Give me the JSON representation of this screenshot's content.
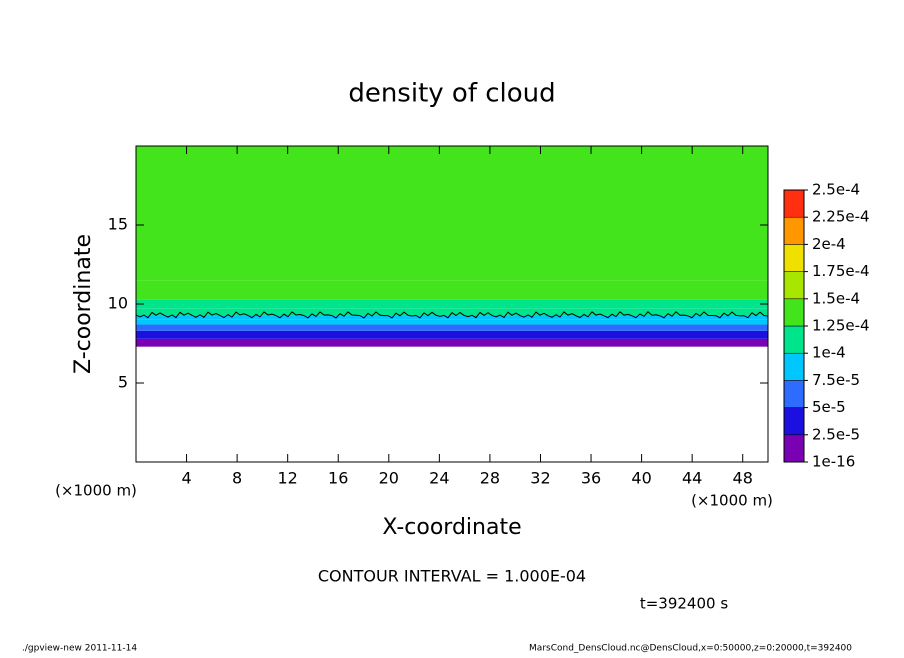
{
  "chart_data": {
    "type": "contour",
    "title": "density of cloud",
    "xlabel": "X-coordinate",
    "ylabel": "Z-coordinate",
    "x_units": [
      "(×1000 m)",
      "(×1000 m)"
    ],
    "xlim": [
      0,
      50
    ],
    "ylim": [
      0,
      20
    ],
    "xticks": [
      4,
      8,
      12,
      16,
      20,
      24,
      28,
      32,
      36,
      40,
      44,
      48
    ],
    "yticks": [
      5,
      10,
      15
    ],
    "profile": {
      "z_edges": [
        7.3,
        7.8,
        8.3,
        8.7,
        9.0,
        9.3,
        9.7,
        10.3,
        11.5,
        20
      ],
      "values": [
        1e-05,
        3e-05,
        5.5e-05,
        8e-05,
        9e-05,
        0.000105,
        0.000115,
        0.00013,
        0.00014
      ]
    },
    "contour_level": 0.0001,
    "levels": [
      {
        "value": 1e-16,
        "label": "1e-16"
      },
      {
        "value": 2.5e-05,
        "label": "2.5e-5"
      },
      {
        "value": 5e-05,
        "label": "5e-5"
      },
      {
        "value": 7.5e-05,
        "label": "7.5e-5"
      },
      {
        "value": 0.0001,
        "label": "1e-4"
      },
      {
        "value": 0.000125,
        "label": "1.25e-4"
      },
      {
        "value": 0.00015,
        "label": "1.5e-4"
      },
      {
        "value": 0.000175,
        "label": "1.75e-4"
      },
      {
        "value": 0.0002,
        "label": "2e-4"
      },
      {
        "value": 0.000225,
        "label": "2.25e-4"
      },
      {
        "value": 0.00025,
        "label": "2.5e-4"
      }
    ],
    "colors": [
      "#7a00b4",
      "#1c10e0",
      "#2e6cff",
      "#00c8ff",
      "#00e48c",
      "#44e41c",
      "#a8e600",
      "#f0e000",
      "#ff9800",
      "#ff3010"
    ],
    "contour_note": "CONTOUR INTERVAL = 1.000E-04",
    "time_label": "t=392400 s",
    "footer_left": "./gpview-new   2011-11-14",
    "footer_right": "MarsCond_DensCloud.nc@DensCloud,x=0:50000,z=0:20000,t=392400"
  }
}
